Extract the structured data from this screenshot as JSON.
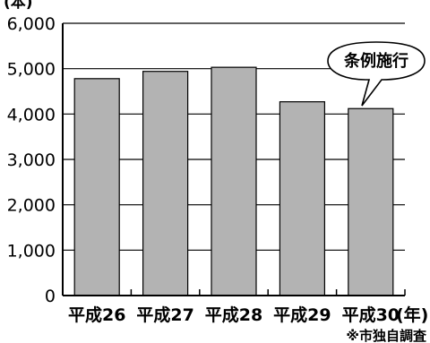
{
  "chart_data": {
    "type": "bar",
    "categories": [
      "平成26",
      "平成27",
      "平成28",
      "平成29",
      "平成30"
    ],
    "values": [
      4780,
      4940,
      5030,
      4270,
      4120
    ],
    "ylim": [
      0,
      6000
    ],
    "yticks": [
      "0",
      "1,000",
      "2,000",
      "3,000",
      "4,000",
      "5,000",
      "6,000"
    ],
    "ytick_values": [
      0,
      1000,
      2000,
      3000,
      4000,
      5000,
      6000
    ],
    "y_unit": "(本)",
    "x_unit": "(年)",
    "annotation": "条例施行",
    "annotation_target": "平成30",
    "note": "※市独自調査",
    "grid": true,
    "bar_color": "#b3b3b3"
  }
}
